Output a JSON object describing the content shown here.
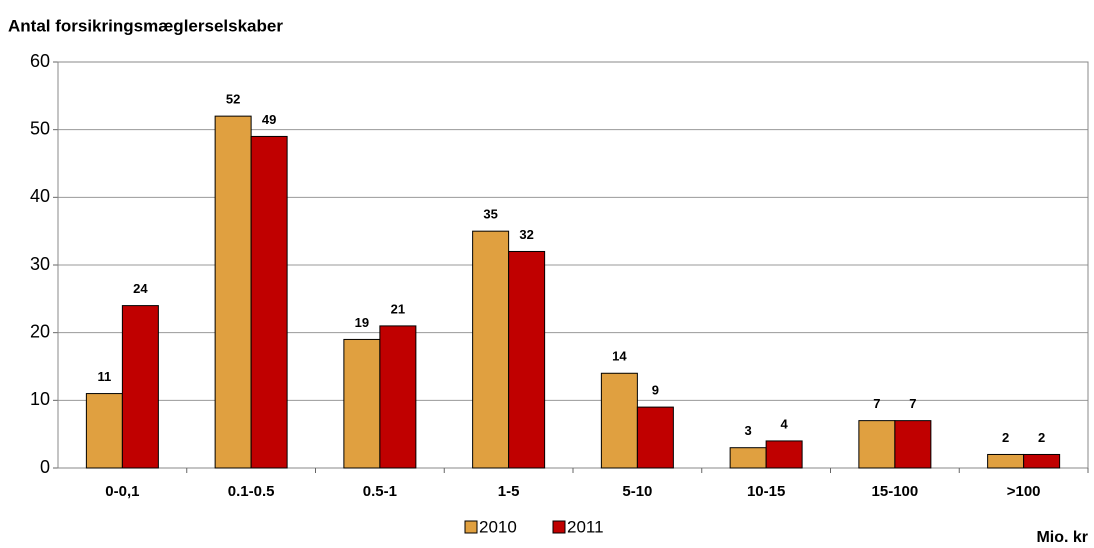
{
  "chart_data": {
    "type": "bar",
    "title": "Antal forsikringsmæglerselskaber",
    "x_label": "Mio. kr",
    "categories": [
      "0-0,1",
      "0.1-0.5",
      "0.5-1",
      "1-5",
      "5-10",
      "10-15",
      "15-100",
      ">100"
    ],
    "series": [
      {
        "name": "2010",
        "color": "#e0a040",
        "values": [
          11,
          52,
          19,
          35,
          14,
          3,
          7,
          2
        ]
      },
      {
        "name": "2011",
        "color": "#c00000",
        "values": [
          24,
          49,
          21,
          32,
          9,
          4,
          7,
          2
        ]
      }
    ],
    "ylim": [
      0,
      60
    ],
    "yticks": [
      0,
      10,
      20,
      30,
      40,
      50,
      60
    ],
    "grid": true,
    "legend": "bottom"
  }
}
